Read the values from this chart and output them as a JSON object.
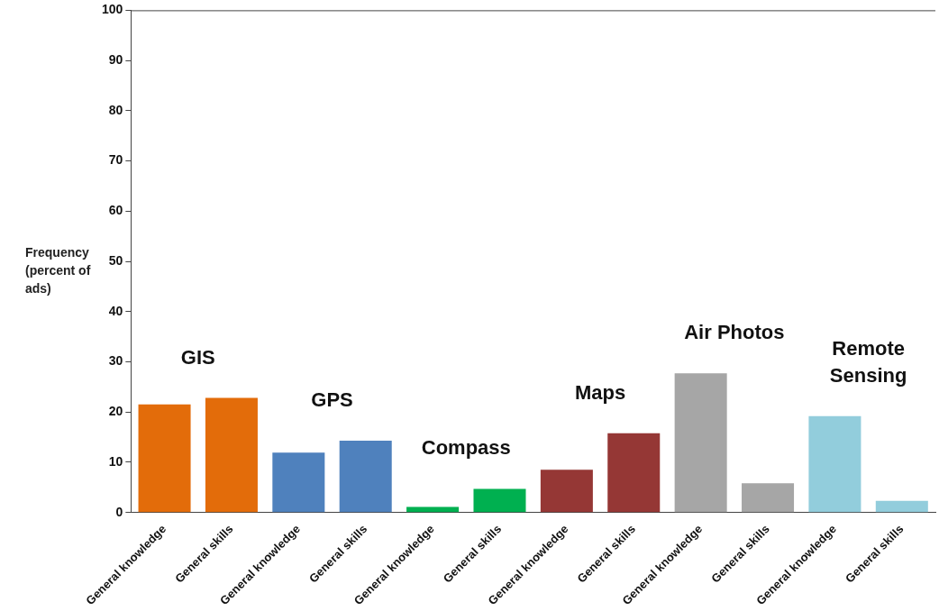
{
  "chart_data": {
    "type": "bar",
    "ylabel": "Frequency (percent of ads)",
    "categories": [
      "General knowledge",
      "General skills",
      "General knowledge",
      "General skills",
      "General knowledge",
      "General skills",
      "General knowledge",
      "General skills",
      "General knowledge",
      "General skills",
      "General knowledge",
      "General skills"
    ],
    "values": [
      21.5,
      22.8,
      11.9,
      14.3,
      1.1,
      4.7,
      8.5,
      15.8,
      27.7,
      5.8,
      19.2,
      2.3
    ],
    "colors": [
      "#e36c0a",
      "#e36c0a",
      "#4f81bd",
      "#4f81bd",
      "#00b050",
      "#00b050",
      "#953735",
      "#953735",
      "#a6a6a6",
      "#a6a6a6",
      "#92cddc",
      "#92cddc"
    ],
    "ylim": [
      0,
      100
    ],
    "yticks": [
      0,
      10,
      20,
      30,
      40,
      50,
      60,
      70,
      80,
      90,
      100
    ],
    "annotations": [
      "GIS",
      "GPS",
      "Compass",
      "Maps",
      "Air Photos",
      "Remote Sensing"
    ],
    "grid": false,
    "legend": false
  }
}
